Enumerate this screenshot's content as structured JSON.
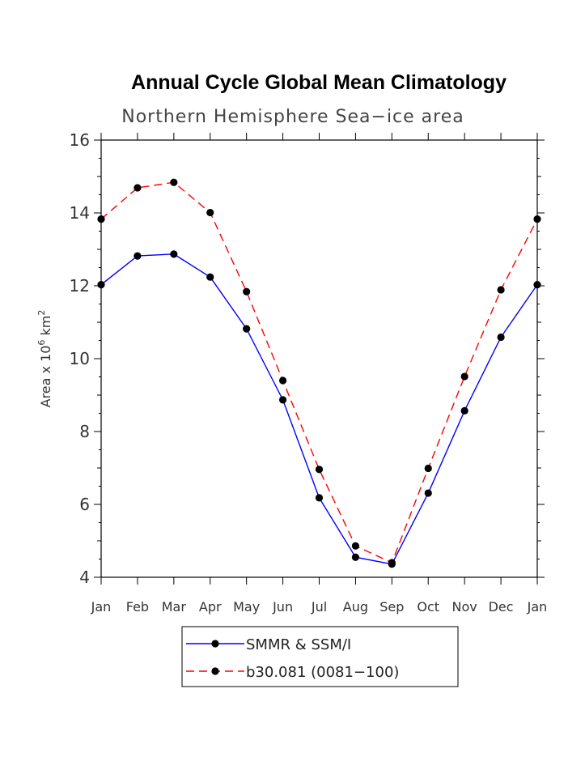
{
  "chart_data": {
    "type": "line",
    "title": "Annual Cycle Global Mean Climatology",
    "subtitle": "Northern Hemisphere Sea−ice area",
    "ylabel_text": "Area x 10",
    "ylabel_exp": "6",
    "ylabel_unit": " km",
    "ylabel_unit_exp": "2",
    "categories": [
      "Jan",
      "Feb",
      "Mar",
      "Apr",
      "May",
      "Jun",
      "Jul",
      "Aug",
      "Sep",
      "Oct",
      "Nov",
      "Dec",
      "Jan"
    ],
    "ylim": [
      4,
      16
    ],
    "yticks": [
      4,
      6,
      8,
      10,
      12,
      14,
      16
    ],
    "ytick_labels": [
      "4",
      "6",
      "8",
      "10",
      "12",
      "14",
      "16"
    ],
    "legend_position": "bottom-center",
    "series": [
      {
        "name": "SMMR & SSM/I",
        "color": "#0000ff",
        "dash": "solid",
        "values": [
          12.03,
          12.82,
          12.87,
          12.24,
          10.82,
          8.87,
          6.18,
          4.55,
          4.36,
          6.31,
          8.57,
          10.59,
          12.03
        ]
      },
      {
        "name": "b30.081 (0081−100)",
        "color": "#ff0000",
        "dash": "dashed",
        "values": [
          13.83,
          14.69,
          14.84,
          14.01,
          11.84,
          9.4,
          6.96,
          4.86,
          4.4,
          6.99,
          9.51,
          11.89,
          13.83
        ]
      }
    ]
  }
}
